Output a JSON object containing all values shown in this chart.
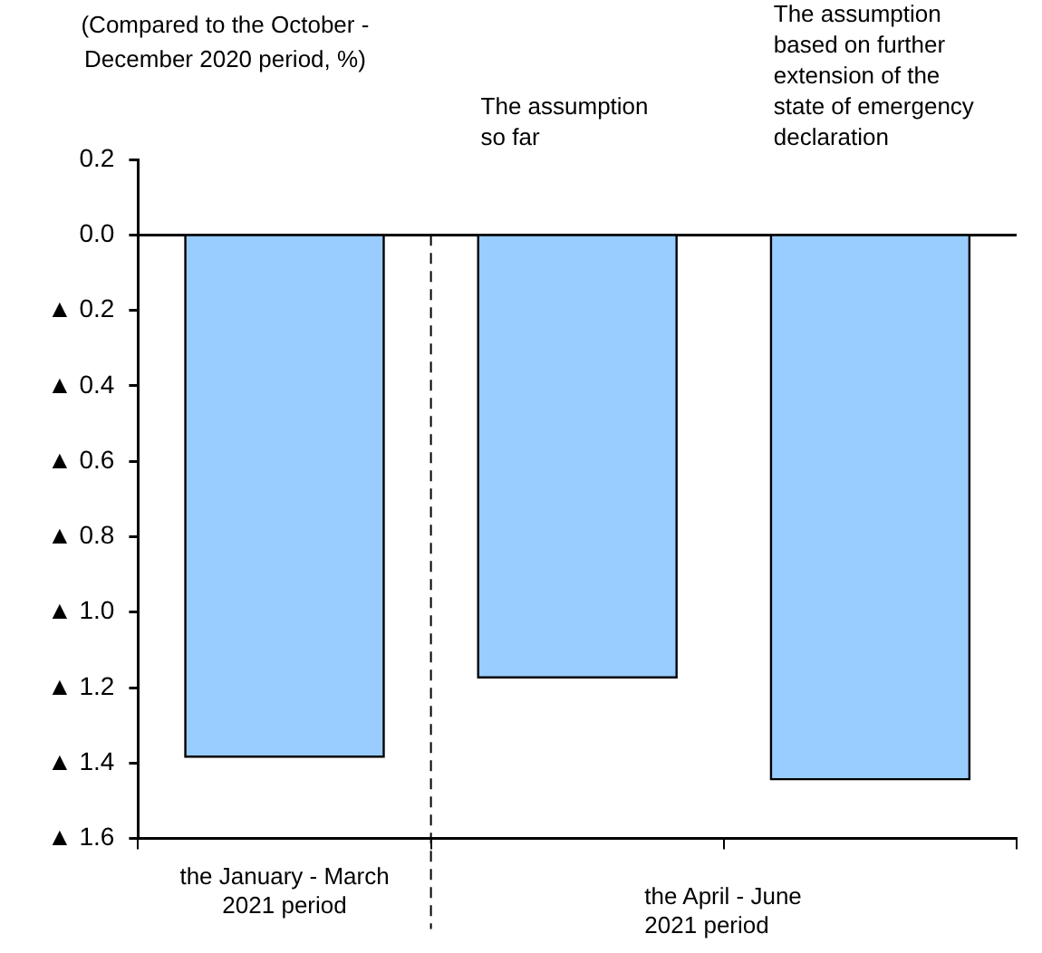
{
  "chart_data": {
    "type": "bar",
    "ylabel": "(Compared to the October - December 2020 period, %)",
    "categories": [
      "the January - March 2021 period",
      null,
      null
    ],
    "values": [
      -1.38,
      -1.17,
      -1.44
    ],
    "color": "#99ccff",
    "ylim": [
      -1.6,
      0.2
    ],
    "yticks": [
      {
        "value": 0.2,
        "label": "0.2"
      },
      {
        "value": 0,
        "label": "0.0"
      },
      {
        "value": -0.2,
        "label": "▲ 0.2"
      },
      {
        "value": -0.4,
        "label": "▲ 0.4"
      },
      {
        "value": -0.6,
        "label": "▲ 0.6"
      },
      {
        "value": -0.8,
        "label": "▲ 0.8"
      },
      {
        "value": -1.0,
        "label": "▲ 1.0"
      },
      {
        "value": -1.2,
        "label": "▲ 1.2"
      },
      {
        "value": -1.4,
        "label": "▲ 1.4"
      },
      {
        "value": -1.6,
        "label": "▲ 1.6"
      }
    ],
    "annotations": [
      "the April - June 2021 period",
      "The assumption so far",
      "The assumption based on further extension of the state of emergency declaration"
    ]
  }
}
